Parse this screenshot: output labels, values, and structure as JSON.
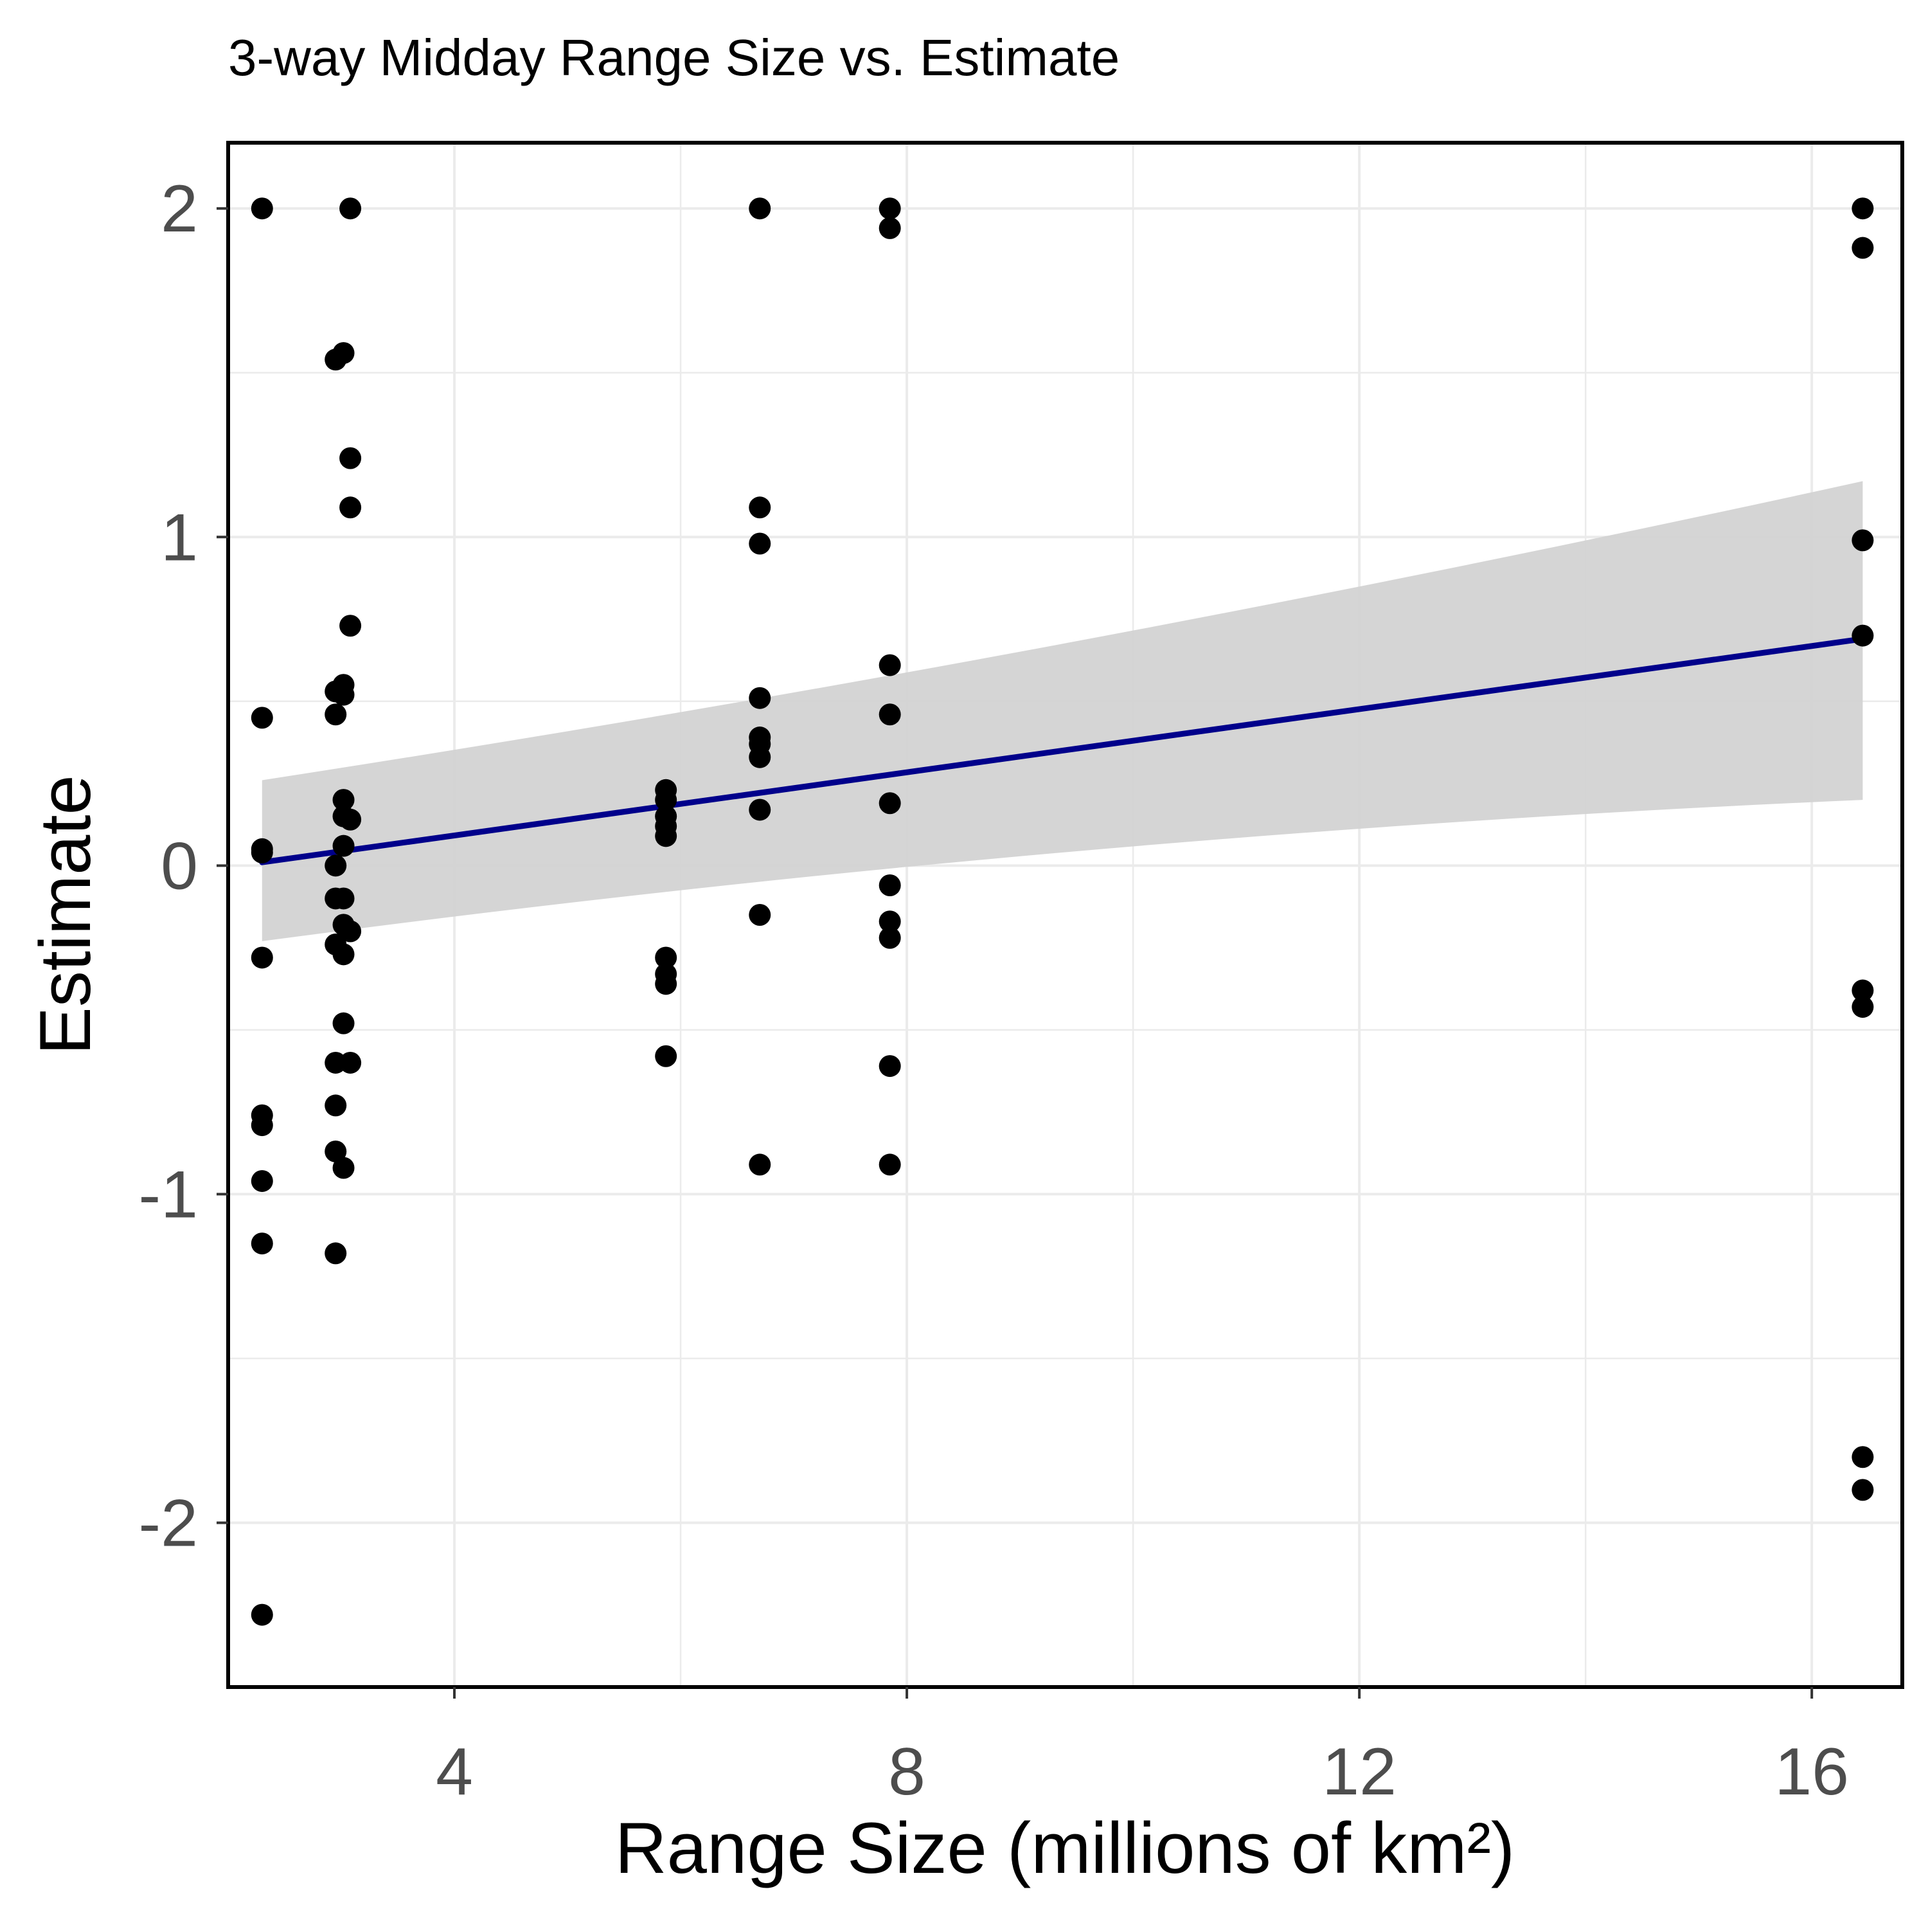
{
  "chart_data": {
    "type": "scatter",
    "title": "3-way Midday Range Size vs. Estimate",
    "xlabel": "Range Size (millions of km²)",
    "ylabel": "Estimate",
    "xlim": [
      2.0,
      16.8
    ],
    "ylim": [
      -2.5,
      2.2
    ],
    "x_ticks": [
      4,
      8,
      12,
      16
    ],
    "x_tick_labels": [
      "4",
      "8",
      "12",
      "16"
    ],
    "y_ticks": [
      -2,
      -1,
      0,
      1,
      2
    ],
    "y_tick_labels": [
      "-2",
      "-1",
      "0",
      "1",
      "2"
    ],
    "grid": true,
    "legend": "none",
    "colors": {
      "points": "#000000",
      "fit_line": "#00008b",
      "confidence_band": "#d3d3d3",
      "grid": "#ebebeb",
      "panel_border": "#000000"
    },
    "series": [
      {
        "type": "scatter",
        "points": [
          [
            2.3,
            2.0
          ],
          [
            2.3,
            0.45
          ],
          [
            2.3,
            0.05
          ],
          [
            2.3,
            0.04
          ],
          [
            2.3,
            -0.28
          ],
          [
            2.3,
            -0.76
          ],
          [
            2.3,
            -0.79
          ],
          [
            2.3,
            -0.96
          ],
          [
            2.3,
            -1.15
          ],
          [
            2.3,
            -2.28
          ],
          [
            2.95,
            1.54
          ],
          [
            2.95,
            0.53
          ],
          [
            2.95,
            0.46
          ],
          [
            2.95,
            0.0
          ],
          [
            2.95,
            -0.1
          ],
          [
            2.95,
            -0.24
          ],
          [
            2.95,
            -0.6
          ],
          [
            2.95,
            -0.73
          ],
          [
            2.95,
            -0.87
          ],
          [
            2.95,
            -1.18
          ],
          [
            3.02,
            1.56
          ],
          [
            3.02,
            0.55
          ],
          [
            3.02,
            0.52
          ],
          [
            3.02,
            0.2
          ],
          [
            3.02,
            0.15
          ],
          [
            3.02,
            0.06
          ],
          [
            3.02,
            -0.1
          ],
          [
            3.02,
            -0.18
          ],
          [
            3.02,
            -0.27
          ],
          [
            3.02,
            -0.48
          ],
          [
            3.02,
            -0.92
          ],
          [
            3.08,
            2.0
          ],
          [
            3.08,
            1.24
          ],
          [
            3.08,
            1.09
          ],
          [
            3.08,
            0.73
          ],
          [
            3.08,
            0.14
          ],
          [
            3.08,
            -0.2
          ],
          [
            3.08,
            -0.6
          ],
          [
            5.87,
            0.23
          ],
          [
            5.87,
            0.2
          ],
          [
            5.87,
            0.15
          ],
          [
            5.87,
            0.12
          ],
          [
            5.87,
            0.09
          ],
          [
            5.87,
            -0.28
          ],
          [
            5.87,
            -0.33
          ],
          [
            5.87,
            -0.36
          ],
          [
            5.87,
            -0.58
          ],
          [
            6.7,
            2.0
          ],
          [
            6.7,
            1.09
          ],
          [
            6.7,
            0.98
          ],
          [
            6.7,
            0.51
          ],
          [
            6.7,
            0.39
          ],
          [
            6.7,
            0.37
          ],
          [
            6.7,
            0.33
          ],
          [
            6.7,
            0.17
          ],
          [
            6.7,
            -0.15
          ],
          [
            6.7,
            -0.91
          ],
          [
            7.85,
            2.0
          ],
          [
            7.85,
            1.94
          ],
          [
            7.85,
            0.61
          ],
          [
            7.85,
            0.46
          ],
          [
            7.85,
            0.19
          ],
          [
            7.85,
            -0.06
          ],
          [
            7.85,
            -0.17
          ],
          [
            7.85,
            -0.22
          ],
          [
            7.85,
            -0.61
          ],
          [
            7.85,
            -0.91
          ],
          [
            16.45,
            2.0
          ],
          [
            16.45,
            1.88
          ],
          [
            16.45,
            0.99
          ],
          [
            16.45,
            0.7
          ],
          [
            16.45,
            -0.38
          ],
          [
            16.45,
            -0.43
          ],
          [
            16.45,
            -1.8
          ],
          [
            16.45,
            -1.9
          ]
        ]
      },
      {
        "type": "line",
        "method": "linear fit",
        "x": [
          2.3,
          16.45
        ],
        "y": [
          0.01,
          0.69
        ],
        "band_lower": [
          -0.23,
          0.2
        ],
        "band_upper": [
          0.26,
          1.17
        ]
      }
    ]
  }
}
